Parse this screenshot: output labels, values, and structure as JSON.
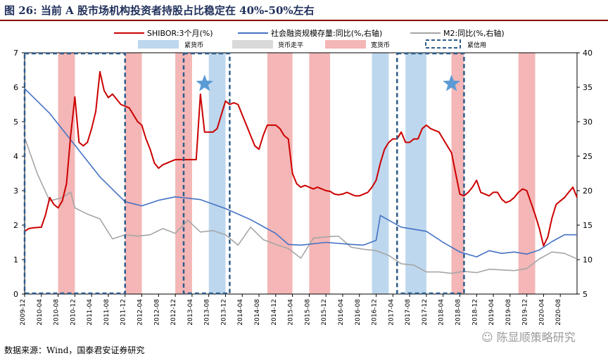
{
  "figure": {
    "title": "图 26:  当前 A 股市场机构投资者持股占比稳定在 40%-50%左右",
    "source": "数据来源：Wind，国泰君安证券研究",
    "watermark": "陈显顺策略研究"
  },
  "colors": {
    "shibor": "#cc0000",
    "social_financing": "#4472c4",
    "m2": "#a6a6a6",
    "tight_money": "#bdd7ee",
    "neutral_money": "#d9d9d9",
    "loose_credit": "#f4b6b6",
    "tight_credit_box": "#2e5c8a",
    "star": "#5b9bd5",
    "title": "#1f2f5a",
    "rule": "#8b0000"
  },
  "chart_data": {
    "type": "line",
    "title": "",
    "xlabel": "",
    "ylabel": "",
    "ylim": [
      0,
      7
    ],
    "y2lim": [
      5,
      40
    ],
    "yticks": [
      "0",
      "1",
      "2",
      "3",
      "4",
      "5",
      "6",
      "7"
    ],
    "y2ticks": [
      "5",
      "10",
      "15",
      "20",
      "25",
      "30",
      "35",
      "40"
    ],
    "xticks": [
      "2009-12",
      "2010-04",
      "2010-08",
      "2010-12",
      "2011-04",
      "2011-08",
      "2011-12",
      "2012-04",
      "2012-08",
      "2012-12",
      "2013-04",
      "2013-08",
      "2013-12",
      "2014-04",
      "2014-08",
      "2014-12",
      "2015-04",
      "2015-08",
      "2015-12",
      "2016-04",
      "2016-08",
      "2016-12",
      "2017-04",
      "2017-08",
      "2017-12",
      "2018-04",
      "2018-08",
      "2018-12",
      "2019-04",
      "2019-08",
      "2019-12",
      "2020-04",
      "2020-08"
    ],
    "legend": [
      "SHIBOR:3个月(%)",
      "社会融资规模存量:同比(%,右轴)",
      "M2:同比(%,右轴)",
      "紧货币",
      "货币走平",
      "宽货币",
      "紧信用"
    ],
    "x_start": "2009-12",
    "series": [
      {
        "name": "SHIBOR:3个月(%)",
        "axis": "left",
        "points": [
          [
            "2009-12",
            1.82
          ],
          [
            "2010-01",
            1.9
          ],
          [
            "2010-02",
            1.92
          ],
          [
            "2010-03",
            1.93
          ],
          [
            "2010-04",
            1.94
          ],
          [
            "2010-05",
            2.3
          ],
          [
            "2010-06",
            2.8
          ],
          [
            "2010-07",
            2.6
          ],
          [
            "2010-08",
            2.5
          ],
          [
            "2010-09",
            2.7
          ],
          [
            "2010-10",
            3.2
          ],
          [
            "2010-11",
            4.6
          ],
          [
            "2010-12",
            5.72
          ],
          [
            "2011-01",
            4.4
          ],
          [
            "2011-02",
            4.3
          ],
          [
            "2011-03",
            4.4
          ],
          [
            "2011-04",
            4.8
          ],
          [
            "2011-05",
            5.3
          ],
          [
            "2011-06",
            6.45
          ],
          [
            "2011-07",
            5.9
          ],
          [
            "2011-08",
            5.7
          ],
          [
            "2011-09",
            5.8
          ],
          [
            "2011-10",
            5.65
          ],
          [
            "2011-11",
            5.5
          ],
          [
            "2011-12",
            5.45
          ],
          [
            "2012-01",
            5.4
          ],
          [
            "2012-02",
            5.2
          ],
          [
            "2012-03",
            5.0
          ],
          [
            "2012-04",
            4.9
          ],
          [
            "2012-05",
            4.5
          ],
          [
            "2012-06",
            4.2
          ],
          [
            "2012-07",
            3.8
          ],
          [
            "2012-08",
            3.65
          ],
          [
            "2012-09",
            3.75
          ],
          [
            "2012-10",
            3.8
          ],
          [
            "2012-11",
            3.85
          ],
          [
            "2012-12",
            3.9
          ],
          [
            "2013-01",
            3.9
          ],
          [
            "2013-02",
            3.9
          ],
          [
            "2013-03",
            3.9
          ],
          [
            "2013-04",
            3.9
          ],
          [
            "2013-05",
            3.9
          ],
          [
            "2013-06",
            5.8
          ],
          [
            "2013-07",
            4.7
          ],
          [
            "2013-08",
            4.7
          ],
          [
            "2013-09",
            4.7
          ],
          [
            "2013-10",
            4.8
          ],
          [
            "2013-11",
            5.2
          ],
          [
            "2013-12",
            5.6
          ],
          [
            "2014-01",
            5.5
          ],
          [
            "2014-02",
            5.55
          ],
          [
            "2014-03",
            5.5
          ],
          [
            "2014-04",
            5.2
          ],
          [
            "2014-05",
            4.9
          ],
          [
            "2014-06",
            4.6
          ],
          [
            "2014-07",
            4.3
          ],
          [
            "2014-08",
            4.2
          ],
          [
            "2014-09",
            4.6
          ],
          [
            "2014-10",
            4.9
          ],
          [
            "2014-11",
            4.9
          ],
          [
            "2014-12",
            4.9
          ],
          [
            "2015-01",
            4.8
          ],
          [
            "2015-02",
            4.6
          ],
          [
            "2015-03",
            4.5
          ],
          [
            "2015-04",
            3.5
          ],
          [
            "2015-05",
            3.2
          ],
          [
            "2015-06",
            3.1
          ],
          [
            "2015-07",
            3.15
          ],
          [
            "2015-08",
            3.1
          ],
          [
            "2015-09",
            3.05
          ],
          [
            "2015-10",
            3.1
          ],
          [
            "2015-11",
            3.05
          ],
          [
            "2015-12",
            3.0
          ],
          [
            "2016-01",
            2.98
          ],
          [
            "2016-02",
            2.9
          ],
          [
            "2016-03",
            2.88
          ],
          [
            "2016-04",
            2.9
          ],
          [
            "2016-05",
            2.95
          ],
          [
            "2016-06",
            2.9
          ],
          [
            "2016-07",
            2.85
          ],
          [
            "2016-08",
            2.85
          ],
          [
            "2016-09",
            2.9
          ],
          [
            "2016-10",
            2.95
          ],
          [
            "2016-11",
            3.1
          ],
          [
            "2016-12",
            3.3
          ],
          [
            "2017-01",
            3.8
          ],
          [
            "2017-02",
            4.2
          ],
          [
            "2017-03",
            4.4
          ],
          [
            "2017-04",
            4.5
          ],
          [
            "2017-05",
            4.5
          ],
          [
            "2017-06",
            4.7
          ],
          [
            "2017-07",
            4.4
          ],
          [
            "2017-08",
            4.4
          ],
          [
            "2017-09",
            4.5
          ],
          [
            "2017-10",
            4.5
          ],
          [
            "2017-11",
            4.8
          ],
          [
            "2017-12",
            4.9
          ],
          [
            "2018-01",
            4.8
          ],
          [
            "2018-02",
            4.75
          ],
          [
            "2018-03",
            4.7
          ],
          [
            "2018-04",
            4.5
          ],
          [
            "2018-05",
            4.3
          ],
          [
            "2018-06",
            4.1
          ],
          [
            "2018-07",
            3.5
          ],
          [
            "2018-08",
            2.9
          ],
          [
            "2018-09",
            2.85
          ],
          [
            "2018-10",
            2.95
          ],
          [
            "2018-11",
            3.1
          ],
          [
            "2018-12",
            3.3
          ],
          [
            "2019-01",
            2.95
          ],
          [
            "2019-02",
            2.9
          ],
          [
            "2019-03",
            2.85
          ],
          [
            "2019-04",
            2.95
          ],
          [
            "2019-05",
            2.95
          ],
          [
            "2019-06",
            2.75
          ],
          [
            "2019-07",
            2.65
          ],
          [
            "2019-08",
            2.7
          ],
          [
            "2019-09",
            2.8
          ],
          [
            "2019-10",
            2.95
          ],
          [
            "2019-11",
            3.05
          ],
          [
            "2019-12",
            3.0
          ],
          [
            "2020-01",
            2.65
          ],
          [
            "2020-02",
            2.3
          ],
          [
            "2020-03",
            1.9
          ],
          [
            "2020-04",
            1.4
          ],
          [
            "2020-05",
            1.65
          ],
          [
            "2020-06",
            2.2
          ],
          [
            "2020-07",
            2.6
          ],
          [
            "2020-08",
            2.7
          ],
          [
            "2020-09",
            2.8
          ],
          [
            "2020-10",
            2.95
          ],
          [
            "2020-11",
            3.1
          ],
          [
            "2020-12",
            2.8
          ]
        ]
      },
      {
        "name": "社会融资规模存量:同比(%,右轴)",
        "axis": "right",
        "points": [
          [
            "2009-12",
            34.8
          ],
          [
            "2010-06",
            31.2
          ],
          [
            "2010-12",
            26.6
          ],
          [
            "2011-06",
            22.0
          ],
          [
            "2011-12",
            18.4
          ],
          [
            "2012-04",
            17.8
          ],
          [
            "2012-08",
            18.6
          ],
          [
            "2012-12",
            19.1
          ],
          [
            "2013-06",
            18.7
          ],
          [
            "2013-12",
            17.4
          ],
          [
            "2014-06",
            15.8
          ],
          [
            "2014-12",
            13.8
          ],
          [
            "2015-03",
            12.2
          ],
          [
            "2015-06",
            12.1
          ],
          [
            "2015-12",
            12.5
          ],
          [
            "2016-06",
            12.2
          ],
          [
            "2016-09",
            12.1
          ],
          [
            "2016-12",
            12.8
          ],
          [
            "2017-01",
            16.4
          ],
          [
            "2017-06",
            14.7
          ],
          [
            "2017-12",
            14.1
          ],
          [
            "2018-04",
            12.5
          ],
          [
            "2018-08",
            11.1
          ],
          [
            "2018-12",
            10.4
          ],
          [
            "2019-03",
            11.3
          ],
          [
            "2019-06",
            10.9
          ],
          [
            "2019-09",
            11.1
          ],
          [
            "2019-12",
            10.8
          ],
          [
            "2020-03",
            11.4
          ],
          [
            "2020-06",
            12.6
          ],
          [
            "2020-09",
            13.6
          ],
          [
            "2020-12",
            13.6
          ]
        ]
      },
      {
        "name": "M2:同比(%,右轴)",
        "axis": "right",
        "points": [
          [
            "2009-12",
            27.7
          ],
          [
            "2010-03",
            22.5
          ],
          [
            "2010-06",
            18.5
          ],
          [
            "2010-09",
            19.0
          ],
          [
            "2010-11",
            19.8
          ],
          [
            "2010-12",
            17.5
          ],
          [
            "2011-03",
            16.6
          ],
          [
            "2011-06",
            15.9
          ],
          [
            "2011-09",
            13.0
          ],
          [
            "2011-12",
            13.6
          ],
          [
            "2012-03",
            13.4
          ],
          [
            "2012-06",
            13.6
          ],
          [
            "2012-09",
            14.5
          ],
          [
            "2012-12",
            13.8
          ],
          [
            "2013-03",
            15.7
          ],
          [
            "2013-06",
            14.0
          ],
          [
            "2013-09",
            14.2
          ],
          [
            "2013-12",
            13.6
          ],
          [
            "2014-03",
            12.1
          ],
          [
            "2014-06",
            14.7
          ],
          [
            "2014-09",
            12.9
          ],
          [
            "2014-12",
            12.2
          ],
          [
            "2015-03",
            11.6
          ],
          [
            "2015-06",
            10.2
          ],
          [
            "2015-09",
            13.1
          ],
          [
            "2015-12",
            13.3
          ],
          [
            "2016-03",
            13.4
          ],
          [
            "2016-06",
            11.8
          ],
          [
            "2016-09",
            11.5
          ],
          [
            "2016-12",
            11.3
          ],
          [
            "2017-03",
            10.6
          ],
          [
            "2017-06",
            9.4
          ],
          [
            "2017-09",
            9.2
          ],
          [
            "2017-12",
            8.2
          ],
          [
            "2018-03",
            8.2
          ],
          [
            "2018-06",
            8.0
          ],
          [
            "2018-09",
            8.3
          ],
          [
            "2018-12",
            8.1
          ],
          [
            "2019-03",
            8.6
          ],
          [
            "2019-06",
            8.5
          ],
          [
            "2019-09",
            8.4
          ],
          [
            "2019-12",
            8.7
          ],
          [
            "2020-03",
            10.1
          ],
          [
            "2020-06",
            11.1
          ],
          [
            "2020-09",
            10.9
          ],
          [
            "2020-12",
            10.1
          ]
        ]
      }
    ],
    "bands": [
      {
        "type": "loose",
        "start": "2010-08",
        "end": "2010-12"
      },
      {
        "type": "loose",
        "start": "2011-12",
        "end": "2012-04"
      },
      {
        "type": "loose",
        "start": "2012-12",
        "end": "2013-04"
      },
      {
        "type": "tight",
        "start": "2013-08",
        "end": "2013-12"
      },
      {
        "type": "loose",
        "start": "2014-10",
        "end": "2015-04"
      },
      {
        "type": "loose",
        "start": "2015-08",
        "end": "2016-01"
      },
      {
        "type": "tight",
        "start": "2016-11",
        "end": "2017-03"
      },
      {
        "type": "tight",
        "start": "2017-07",
        "end": "2017-12"
      },
      {
        "type": "loose",
        "start": "2018-06",
        "end": "2018-09"
      },
      {
        "type": "loose",
        "start": "2019-10",
        "end": "2020-02"
      }
    ],
    "credit_boxes": [
      {
        "start": "2009-12",
        "end": "2011-12"
      },
      {
        "start": "2013-02",
        "end": "2014-01"
      },
      {
        "start": "2017-05",
        "end": "2018-09"
      }
    ],
    "stars": [
      "2013-07",
      "2018-06"
    ]
  }
}
